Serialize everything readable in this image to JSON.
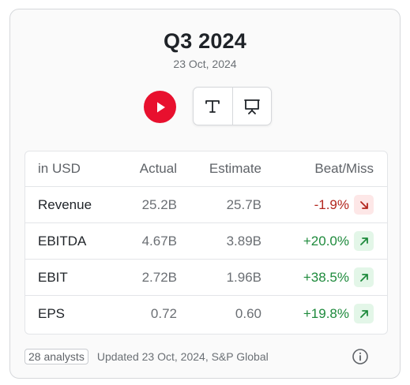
{
  "header": {
    "title": "Q3 2024",
    "date": "23 Oct, 2024"
  },
  "controls": {
    "play_icon": "play-icon",
    "text_icon": "text-transcript-icon",
    "slides_icon": "presentation-icon",
    "play_color": "#e8102e"
  },
  "table": {
    "columns": [
      "in USD",
      "Actual",
      "Estimate",
      "Beat/Miss"
    ],
    "rows": [
      {
        "metric": "Revenue",
        "actual": "25.2B",
        "estimate": "25.7B",
        "beat": "-1.9%",
        "direction": "down"
      },
      {
        "metric": "EBITDA",
        "actual": "4.67B",
        "estimate": "3.89B",
        "beat": "+20.0%",
        "direction": "up"
      },
      {
        "metric": "EBIT",
        "actual": "2.72B",
        "estimate": "1.96B",
        "beat": "+38.5%",
        "direction": "up"
      },
      {
        "metric": "EPS",
        "actual": "0.72",
        "estimate": "0.60",
        "beat": "+19.8%",
        "direction": "up"
      }
    ]
  },
  "footer": {
    "analysts": "28 analysts",
    "updated": "Updated 23 Oct, 2024, S&P Global",
    "info_icon": "info-icon"
  },
  "colors": {
    "negative": "#b3261e",
    "positive": "#1e8a3c",
    "negative_bg": "#fde7e7",
    "positive_bg": "#e3f6e8"
  }
}
